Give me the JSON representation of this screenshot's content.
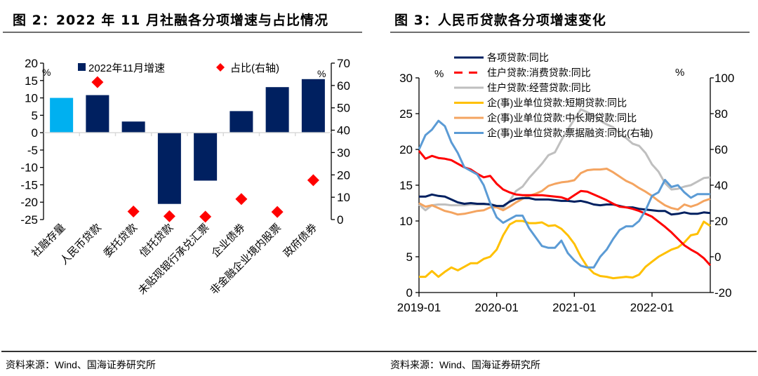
{
  "figures": {
    "left": {
      "title": "图 2：2022 年 11 月社融各分项增速与占比情况",
      "source": "资料来源：Wind、国海证券研究所"
    },
    "right": {
      "title": "图 3：人民币贷款各分项增速变化",
      "source": "资料来源：Wind、国海证券研究所"
    }
  },
  "chart_data": [
    {
      "type": "bar",
      "title": "2022年11月社融各分项增速与占比情况",
      "categories": [
        "社融存量",
        "人民币贷款",
        "委托贷款",
        "信托贷款",
        "未贴现银行承兑汇票",
        "企业债券",
        "非金融企业境内股票",
        "政府债券"
      ],
      "series": [
        {
          "name": "2022年11月增速",
          "kind": "bar",
          "axis": "left",
          "color": "#002060",
          "highlight_color": "#00B0F0",
          "highlight_index": 0,
          "values": [
            10.0,
            10.8,
            3.2,
            -20.5,
            -13.8,
            6.2,
            13.1,
            15.4
          ]
        },
        {
          "name": "占比(右轴)",
          "kind": "scatter",
          "marker": "diamond",
          "axis": "right",
          "color": "#FF0000",
          "values": [
            null,
            61.5,
            3.6,
            1.5,
            1.3,
            9.2,
            3.4,
            17.6
          ]
        }
      ],
      "left_axis": {
        "unit": "%",
        "ylim": [
          -25,
          20
        ],
        "ticks": [
          20,
          15,
          10,
          5,
          0,
          -5,
          -10,
          -15,
          -20,
          -25
        ]
      },
      "right_axis": {
        "unit": "%",
        "ylim": [
          0,
          70
        ],
        "ticks": [
          70,
          60,
          50,
          40,
          30,
          20,
          10,
          0
        ]
      },
      "legend": {
        "placement": "top",
        "entries": [
          "2022年11月增速",
          "占比(右轴)"
        ]
      },
      "grid": false
    },
    {
      "type": "line",
      "title": "人民币贷款各分项增速变化",
      "x_start": "2019-01",
      "x_end": "2022-10",
      "x_ticks": [
        "2019-01",
        "2020-01",
        "2021-01",
        "2022-01"
      ],
      "left_axis": {
        "unit": "%",
        "ylim": [
          0,
          30
        ],
        "ticks": [
          30,
          25,
          20,
          15,
          10,
          5,
          0
        ]
      },
      "right_axis": {
        "unit": "%",
        "ylim": [
          -20,
          100
        ],
        "ticks": [
          100,
          80,
          60,
          40,
          20,
          0,
          -20
        ]
      },
      "legend": {
        "placement": "top-center"
      },
      "grid": false,
      "series": [
        {
          "name": "各项贷款:同比",
          "color": "#002060",
          "dash": false,
          "axis": "left",
          "values": [
            13.4,
            13.4,
            13.7,
            13.5,
            13.4,
            13.0,
            12.6,
            12.4,
            12.5,
            12.4,
            12.4,
            12.3,
            12.1,
            12.1,
            12.7,
            13.1,
            13.2,
            13.2,
            13.0,
            13.0,
            13.0,
            12.9,
            12.8,
            12.8,
            12.7,
            12.8,
            12.6,
            12.3,
            12.2,
            12.3,
            12.3,
            12.1,
            11.9,
            11.9,
            11.7,
            11.6,
            11.5,
            11.4,
            11.4,
            10.9,
            11.0,
            11.2,
            11.0,
            11.0,
            11.2,
            11.1
          ]
        },
        {
          "name": "住户贷款:消费贷款:同比",
          "color": "#FF0000",
          "dash": true,
          "axis": "left",
          "values": [
            19.8,
            18.7,
            19.1,
            18.8,
            18.7,
            18.5,
            18.0,
            17.5,
            17.2,
            16.6,
            16.1,
            16.3,
            15.2,
            14.4,
            14.0,
            13.7,
            13.6,
            13.6,
            13.6,
            13.6,
            13.5,
            13.4,
            13.3,
            13.0,
            13.6,
            14.2,
            14.1,
            13.7,
            13.3,
            12.9,
            12.4,
            12.0,
            11.9,
            11.7,
            11.4,
            11.0,
            10.6,
            9.9,
            9.2,
            8.4,
            7.5,
            6.6,
            6.0,
            5.5,
            4.8,
            3.8
          ]
        },
        {
          "name": "住户贷款:经营贷款:同比",
          "color": "#BFBFBF",
          "dash": false,
          "axis": "left",
          "values": [
            12.3,
            11.5,
            12.2,
            12.3,
            12.3,
            12.2,
            12.2,
            12.2,
            12.3,
            12.3,
            12.3,
            12.4,
            12.1,
            11.8,
            12.8,
            14.2,
            14.8,
            16.0,
            17.0,
            18.0,
            19.2,
            19.6,
            21.3,
            22.8,
            24.2,
            25.6,
            25.2,
            24.7,
            24.0,
            23.5,
            23.1,
            22.2,
            21.6,
            20.8,
            20.5,
            19.5,
            17.9,
            16.9,
            15.3,
            14.4,
            14.5,
            14.8,
            15.0,
            15.5,
            16.0,
            16.1
          ]
        },
        {
          "name": "企(事)业单位贷款:短期贷款:同比",
          "color": "#FFC000",
          "dash": false,
          "axis": "left",
          "values": [
            2.2,
            2.2,
            3.0,
            2.2,
            2.9,
            3.5,
            3.1,
            3.6,
            4.1,
            4.1,
            4.7,
            5.0,
            6.0,
            8.0,
            9.5,
            10.0,
            10.0,
            9.7,
            9.7,
            9.8,
            9.3,
            9.4,
            8.9,
            8.0,
            6.8,
            5.0,
            3.6,
            2.7,
            2.3,
            2.2,
            2.0,
            2.1,
            2.2,
            2.1,
            2.5,
            3.6,
            4.3,
            5.0,
            5.5,
            6.0,
            6.3,
            7.0,
            8.0,
            8.2,
            9.9,
            9.3
          ]
        },
        {
          "name": "企(事)业单位贷款:中长期贷款:同比",
          "color": "#F4A460",
          "dash": false,
          "axis": "left",
          "values": [
            12.5,
            12.0,
            12.2,
            11.8,
            11.4,
            11.2,
            10.9,
            11.0,
            11.2,
            11.4,
            11.5,
            11.9,
            11.9,
            11.5,
            12.0,
            12.6,
            13.1,
            13.5,
            13.8,
            14.2,
            14.9,
            15.2,
            15.4,
            15.5,
            15.7,
            16.7,
            17.1,
            17.2,
            17.2,
            17.3,
            16.8,
            16.2,
            15.6,
            15.2,
            14.6,
            14.1,
            13.5,
            12.8,
            12.2,
            11.8,
            11.6,
            12.3,
            12.0,
            12.3,
            12.8,
            13.1
          ]
        },
        {
          "name": "企(事)业单位贷款:票据融资:同比(右轴)",
          "color": "#5B9BD5",
          "dash": false,
          "axis": "right",
          "values": [
            60.0,
            68.0,
            71.0,
            76.0,
            73.0,
            64.0,
            58.0,
            50.0,
            48.0,
            46.0,
            40.0,
            30.0,
            22.0,
            19.0,
            21.0,
            23.0,
            23.0,
            16.0,
            11.0,
            6.0,
            5.0,
            5.0,
            9.0,
            2.0,
            -2.0,
            -5.0,
            -6.0,
            -6.0,
            0.0,
            4.0,
            10.0,
            15.0,
            17.0,
            17.0,
            20.0,
            26.0,
            34.0,
            36.0,
            43.0,
            39.0,
            40.0,
            36.0,
            33.0,
            35.0,
            35.0,
            35.0
          ]
        }
      ]
    }
  ]
}
